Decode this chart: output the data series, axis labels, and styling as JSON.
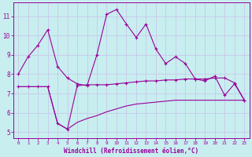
{
  "xlabel": "Windchill (Refroidissement éolien,°C)",
  "background_color": "#c8eef0",
  "grid_color": "#c8c8e8",
  "line_color": "#990099",
  "xlim": [
    -0.5,
    23.5
  ],
  "ylim": [
    4.7,
    11.7
  ],
  "yticks": [
    5,
    6,
    7,
    8,
    9,
    10,
    11
  ],
  "xticks": [
    0,
    1,
    2,
    3,
    4,
    5,
    6,
    7,
    8,
    9,
    10,
    11,
    12,
    13,
    14,
    15,
    16,
    17,
    18,
    19,
    20,
    21,
    22,
    23
  ],
  "series1_x": [
    0,
    1,
    2,
    3,
    4,
    5,
    6,
    7,
    8,
    9,
    10,
    11,
    12,
    13,
    14,
    15,
    16,
    17,
    18,
    19,
    20,
    21,
    22,
    23
  ],
  "series1_y": [
    8.0,
    8.9,
    9.5,
    10.3,
    8.4,
    7.8,
    7.5,
    7.4,
    9.0,
    11.1,
    11.35,
    10.6,
    9.9,
    10.6,
    9.3,
    8.55,
    8.9,
    8.55,
    7.75,
    7.65,
    7.9,
    6.9,
    7.5,
    6.65
  ],
  "series2_x": [
    0,
    1,
    2,
    3,
    4,
    5,
    6,
    7,
    8,
    9,
    10,
    11,
    12,
    13,
    14,
    15,
    16,
    17,
    18,
    19,
    20,
    21,
    22,
    23
  ],
  "series2_y": [
    7.35,
    7.35,
    7.35,
    7.35,
    5.45,
    5.15,
    7.4,
    7.45,
    7.45,
    7.45,
    7.5,
    7.55,
    7.6,
    7.65,
    7.65,
    7.7,
    7.7,
    7.75,
    7.75,
    7.75,
    7.8,
    7.8,
    7.55,
    6.65
  ],
  "series3_x": [
    0,
    1,
    2,
    3,
    4,
    5,
    6,
    7,
    8,
    9,
    10,
    11,
    12,
    13,
    14,
    15,
    16,
    17,
    18,
    19,
    20,
    21,
    22,
    23
  ],
  "series3_y": [
    7.35,
    7.35,
    7.35,
    7.35,
    5.45,
    5.15,
    5.5,
    5.7,
    5.85,
    6.05,
    6.2,
    6.35,
    6.45,
    6.5,
    6.55,
    6.6,
    6.65,
    6.65,
    6.65,
    6.65,
    6.65,
    6.65,
    6.65,
    6.65
  ]
}
